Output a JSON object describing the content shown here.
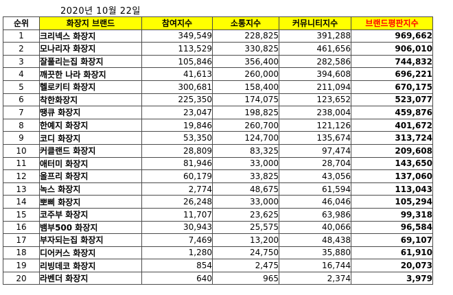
{
  "page": {
    "date_title": "2020년 10월 22일"
  },
  "colors": {
    "header_bg": "#ffff00",
    "accent_red": "#ff0000",
    "border": "#4a4a4a",
    "background": "#ffffff"
  },
  "chart_data": {
    "type": "table",
    "title": "2020년 10월 22일",
    "columns": [
      "순위",
      "화장지 브랜드",
      "참여지수",
      "소통지수",
      "커뮤니티지수",
      "브랜드평판지수"
    ],
    "column_roles": [
      "rank",
      "brand",
      "participation-index",
      "communication-index",
      "community-index",
      "brand-reputation-index"
    ],
    "rows": [
      [
        "1",
        "크리넥스 화장지",
        "349,549",
        "228,825",
        "391,288",
        "969,662"
      ],
      [
        "2",
        "모나리자 화장지",
        "113,529",
        "330,825",
        "461,656",
        "906,010"
      ],
      [
        "3",
        "잘풀리는집 화장지",
        "105,846",
        "356,400",
        "282,586",
        "744,832"
      ],
      [
        "4",
        "깨끗한 나라 화장지",
        "41,613",
        "260,000",
        "394,608",
        "696,221"
      ],
      [
        "5",
        "헬로키티 화장지",
        "300,681",
        "158,400",
        "211,094",
        "670,175"
      ],
      [
        "6",
        "착한화장지",
        "225,350",
        "174,075",
        "123,652",
        "523,077"
      ],
      [
        "7",
        "땡큐 화장지",
        "23,047",
        "198,825",
        "238,004",
        "459,876"
      ],
      [
        "8",
        "한예지 화장지",
        "19,846",
        "260,700",
        "121,126",
        "401,672"
      ],
      [
        "9",
        "코디 화장지",
        "53,350",
        "124,700",
        "135,674",
        "313,724"
      ],
      [
        "10",
        "커클랜드 화장지",
        "28,809",
        "83,325",
        "97,474",
        "209,608"
      ],
      [
        "11",
        "애터미 화장지",
        "81,946",
        "33,000",
        "28,704",
        "143,650"
      ],
      [
        "12",
        "올프리 화장지",
        "60,179",
        "33,825",
        "43,056",
        "137,060"
      ],
      [
        "13",
        "녹스 화장지",
        "2,774",
        "48,675",
        "61,594",
        "113,043"
      ],
      [
        "14",
        "뽀삐 화장지",
        "26,248",
        "33,000",
        "46,046",
        "105,294"
      ],
      [
        "15",
        "코주부 화장지",
        "11,707",
        "23,625",
        "63,986",
        "99,318"
      ],
      [
        "16",
        "뱀부500 화장지",
        "30,943",
        "25,575",
        "40,066",
        "96,584"
      ],
      [
        "17",
        "부자되는집 화장지",
        "7,469",
        "13,200",
        "48,438",
        "69,107"
      ],
      [
        "18",
        "디어커스 화장지",
        "1,280",
        "24,750",
        "35,880",
        "61,910"
      ],
      [
        "19",
        "리빙데코 화장지",
        "854",
        "2,475",
        "16,744",
        "20,073"
      ],
      [
        "20",
        "라벤더 화장지",
        "640",
        "965",
        "2,374",
        "3,979"
      ]
    ]
  }
}
